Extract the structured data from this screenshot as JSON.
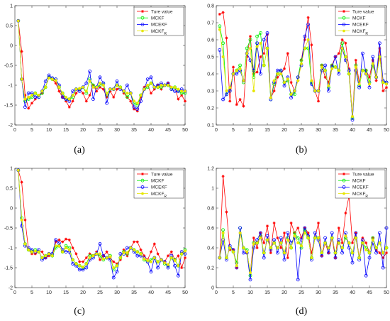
{
  "chart_data": [
    {
      "type": "line",
      "caption": "(a)",
      "ylim": [
        -2,
        1
      ],
      "xlim": [
        0,
        50
      ],
      "yticks": [
        "1",
        "0.5",
        "0",
        "-0.5",
        "-1",
        "-1.5",
        "-2"
      ],
      "xticks": [
        "0",
        "5",
        "10",
        "15",
        "20",
        "25",
        "30",
        "35",
        "40",
        "45",
        "50"
      ],
      "legend": [
        "Ture value",
        "MCKF",
        "MCEKF",
        "MCKF_R"
      ],
      "series": [
        {
          "name": "Ture value",
          "color": "#ff0000",
          "marker": "star",
          "values": [
            0.62,
            -0.15,
            -1.25,
            -1.58,
            -1.45,
            -1.35,
            -1.25,
            -1.2,
            -1.05,
            -0.8,
            -0.85,
            -0.95,
            -1.15,
            -1.3,
            -1.4,
            -1.55,
            -1.4,
            -1.2,
            -1.1,
            -1.2,
            -1.4,
            -1.25,
            -1.0,
            -1.15,
            -1.05,
            -1.1,
            -1.3,
            -1.15,
            -1.3,
            -1.1,
            -1.05,
            -1.2,
            -1.3,
            -1.4,
            -1.6,
            -1.65,
            -1.3,
            -1.05,
            -1.0,
            -1.2,
            -1.1,
            -1.0,
            -1.1,
            -1.0,
            -0.95,
            -1.05,
            -1.05,
            -1.35,
            -1.25,
            -1.4
          ]
        },
        {
          "name": "MCKF",
          "color": "#00ee00",
          "marker": "circle",
          "values": [
            0.62,
            -0.85,
            -1.4,
            -1.35,
            -1.3,
            -1.2,
            -1.3,
            -1.2,
            -1.05,
            -0.8,
            -0.85,
            -0.85,
            -1.05,
            -1.2,
            -1.35,
            -1.35,
            -1.3,
            -1.1,
            -1.1,
            -1.05,
            -1.2,
            -0.85,
            -1.0,
            -1.05,
            -1.0,
            -0.95,
            -1.25,
            -1.1,
            -1.1,
            -1.0,
            -1.05,
            -1.15,
            -1.3,
            -1.2,
            -1.45,
            -1.5,
            -1.25,
            -1.1,
            -1.05,
            -0.95,
            -1.05,
            -1.05,
            -1.05,
            -1.0,
            -1.0,
            -1.1,
            -1.05,
            -1.15,
            -1.2,
            -1.2
          ]
        },
        {
          "name": "MCEKF",
          "color": "#0000ff",
          "marker": "circle",
          "values": [
            0.62,
            -0.85,
            -1.55,
            -1.2,
            -1.2,
            -1.3,
            -1.3,
            -1.15,
            -0.9,
            -0.75,
            -0.82,
            -0.85,
            -1.0,
            -1.3,
            -1.35,
            -1.4,
            -1.15,
            -1.1,
            -1.15,
            -1.05,
            -0.95,
            -0.65,
            -1.35,
            -1.05,
            -0.8,
            -0.95,
            -1.45,
            -1.1,
            -1.1,
            -0.9,
            -1.1,
            -1.15,
            -1.0,
            -1.2,
            -1.55,
            -1.6,
            -1.4,
            -1.1,
            -0.85,
            -0.8,
            -1.05,
            -1.0,
            -0.95,
            -1.0,
            -0.95,
            -1.1,
            -1.15,
            -1.15,
            -1.1,
            -1.15
          ]
        },
        {
          "name": "MCKF_R",
          "color": "#e6e600",
          "marker": "dot",
          "values": [
            0.62,
            -0.85,
            -1.35,
            -1.3,
            -1.25,
            -1.2,
            -1.25,
            -1.15,
            -1.05,
            -0.82,
            -0.85,
            -0.88,
            -1.05,
            -1.2,
            -1.3,
            -1.35,
            -1.25,
            -1.1,
            -1.08,
            -1.05,
            -1.15,
            -0.9,
            -1.05,
            -1.05,
            -0.95,
            -1.0,
            -1.2,
            -1.1,
            -1.1,
            -1.0,
            -1.05,
            -1.15,
            -1.2,
            -1.2,
            -1.4,
            -1.45,
            -1.25,
            -1.1,
            -1.0,
            -0.95,
            -1.05,
            -1.05,
            -1.0,
            -1.0,
            -1.0,
            -1.05,
            -1.05,
            -1.1,
            -1.15,
            -1.15
          ]
        }
      ]
    },
    {
      "type": "line",
      "caption": "(b)",
      "ylim": [
        0.1,
        0.8
      ],
      "xlim": [
        0,
        50
      ],
      "yticks": [
        "0.8",
        "0.7",
        "0.6",
        "0.5",
        "0.4",
        "0.3",
        "0.2",
        "0.1"
      ],
      "xticks": [
        "0",
        "5",
        "10",
        "15",
        "20",
        "25",
        "30",
        "35",
        "40",
        "45",
        "50"
      ],
      "legend": [
        "Ture value",
        "MCKF",
        "MCEKF",
        "MCKF_R"
      ],
      "series": [
        {
          "name": "Ture value",
          "color": "#ff0000",
          "marker": "star",
          "values": [
            0.75,
            0.76,
            0.61,
            0.24,
            0.44,
            0.22,
            0.25,
            0.21,
            0.5,
            0.62,
            0.4,
            0.41,
            0.5,
            0.52,
            0.63,
            0.26,
            0.3,
            0.38,
            0.4,
            0.43,
            0.52,
            0.35,
            0.3,
            0.36,
            0.48,
            0.6,
            0.73,
            0.57,
            0.3,
            0.24,
            0.45,
            0.38,
            0.35,
            0.45,
            0.5,
            0.52,
            0.6,
            0.58,
            0.43,
            0.15,
            0.48,
            0.35,
            0.42,
            0.42,
            0.38,
            0.48,
            0.36,
            0.55,
            0.3,
            0.32
          ]
        },
        {
          "name": "MCKF",
          "color": "#00ee00",
          "marker": "circle",
          "values": [
            0.68,
            0.58,
            0.28,
            0.3,
            0.4,
            0.42,
            0.45,
            0.35,
            0.55,
            0.6,
            0.38,
            0.62,
            0.64,
            0.45,
            0.55,
            0.25,
            0.34,
            0.4,
            0.42,
            0.35,
            0.36,
            0.28,
            0.28,
            0.38,
            0.48,
            0.55,
            0.55,
            0.35,
            0.3,
            0.3,
            0.45,
            0.42,
            0.32,
            0.45,
            0.44,
            0.42,
            0.58,
            0.5,
            0.4,
            0.14,
            0.45,
            0.33,
            0.42,
            0.42,
            0.35,
            0.45,
            0.38,
            0.5,
            0.35,
            0.35
          ]
        },
        {
          "name": "MCEKF",
          "color": "#0000ff",
          "marker": "circle",
          "values": [
            0.54,
            0.25,
            0.28,
            0.3,
            0.4,
            0.4,
            0.42,
            0.36,
            0.52,
            0.48,
            0.42,
            0.58,
            0.4,
            0.6,
            0.64,
            0.25,
            0.35,
            0.42,
            0.42,
            0.33,
            0.38,
            0.26,
            0.3,
            0.38,
            0.45,
            0.62,
            0.69,
            0.34,
            0.3,
            0.3,
            0.42,
            0.45,
            0.3,
            0.44,
            0.5,
            0.4,
            0.55,
            0.48,
            0.42,
            0.13,
            0.42,
            0.32,
            0.52,
            0.4,
            0.32,
            0.5,
            0.38,
            0.58,
            0.36,
            0.35
          ]
        },
        {
          "name": "MCKF_R",
          "color": "#e6e600",
          "marker": "dot",
          "values": [
            0.66,
            0.5,
            0.3,
            0.32,
            0.4,
            0.42,
            0.43,
            0.36,
            0.52,
            0.55,
            0.3,
            0.56,
            0.58,
            0.45,
            0.55,
            0.26,
            0.36,
            0.4,
            0.4,
            0.35,
            0.37,
            0.28,
            0.3,
            0.36,
            0.46,
            0.55,
            0.6,
            0.36,
            0.3,
            0.3,
            0.44,
            0.42,
            0.33,
            0.43,
            0.44,
            0.42,
            0.55,
            0.5,
            0.4,
            0.15,
            0.44,
            0.34,
            0.42,
            0.4,
            0.34,
            0.46,
            0.38,
            0.5,
            0.35,
            0.34
          ]
        }
      ]
    },
    {
      "type": "line",
      "caption": "(c)",
      "ylim": [
        -2,
        1
      ],
      "xlim": [
        0,
        50
      ],
      "yticks": [
        "1",
        "0.5",
        "0",
        "-0.5",
        "-1",
        "-1.5",
        "-2"
      ],
      "xticks": [
        "0",
        "5",
        "10",
        "15",
        "20",
        "25",
        "30",
        "35",
        "40",
        "45",
        "50"
      ],
      "legend": [
        "Ture value",
        "MCKF",
        "MCEKF",
        "MCKF_R"
      ],
      "series": [
        {
          "name": "Ture value",
          "color": "#ff0000",
          "marker": "star",
          "values": [
            0.95,
            0.65,
            -0.3,
            -1.05,
            -1.15,
            -1.15,
            -1.1,
            -1.1,
            -1.25,
            -1.2,
            -1.2,
            -0.85,
            -0.8,
            -0.85,
            -0.78,
            -0.8,
            -1.0,
            -1.15,
            -1.35,
            -1.35,
            -1.25,
            -1.15,
            -1.2,
            -1.1,
            -1.3,
            -1.2,
            -1.1,
            -1.25,
            -1.35,
            -1.4,
            -1.3,
            -1.05,
            -1.2,
            -1.0,
            -0.85,
            -0.85,
            -1.05,
            -1.2,
            -1.3,
            -1.1,
            -0.9,
            -1.15,
            -1.3,
            -1.35,
            -1.2,
            -1.1,
            -1.3,
            -1.2,
            -1.5,
            -1.25
          ]
        },
        {
          "name": "MCKF",
          "color": "#00ee00",
          "marker": "circle",
          "values": [
            0.95,
            -0.25,
            -0.9,
            -1.05,
            -1.1,
            -1.05,
            -1.1,
            -1.25,
            -1.2,
            -1.15,
            -1.2,
            -1.0,
            -0.95,
            -1.1,
            -0.95,
            -1.0,
            -1.3,
            -1.4,
            -1.45,
            -1.5,
            -1.4,
            -1.2,
            -1.2,
            -1.15,
            -1.2,
            -1.3,
            -1.25,
            -1.2,
            -1.55,
            -1.45,
            -1.25,
            -1.1,
            -1.15,
            -1.0,
            -1.05,
            -1.1,
            -1.15,
            -1.3,
            -1.35,
            -1.3,
            -1.25,
            -1.35,
            -1.3,
            -1.4,
            -1.45,
            -1.25,
            -1.3,
            -1.45,
            -1.15,
            -1.05
          ]
        },
        {
          "name": "MCEKF",
          "color": "#0000ff",
          "marker": "circle",
          "values": [
            0.95,
            -0.45,
            -0.95,
            -1.0,
            -1.05,
            -1.1,
            -1.05,
            -1.3,
            -1.25,
            -1.15,
            -1.15,
            -0.8,
            -0.88,
            -1.05,
            -1.1,
            -1.1,
            -1.4,
            -1.45,
            -1.55,
            -1.55,
            -1.5,
            -1.3,
            -1.25,
            -1.15,
            -0.9,
            -1.2,
            -1.25,
            -1.3,
            -1.75,
            -1.6,
            -1.15,
            -1.15,
            -1.0,
            -1.0,
            -1.1,
            -1.2,
            -1.2,
            -1.25,
            -1.35,
            -1.6,
            -1.25,
            -1.5,
            -1.3,
            -1.35,
            -1.5,
            -1.2,
            -1.45,
            -1.7,
            -1.1,
            -1.15
          ]
        },
        {
          "name": "MCKF_R",
          "color": "#e6e600",
          "marker": "dot",
          "values": [
            0.95,
            -0.3,
            -0.9,
            -1.05,
            -1.1,
            -1.08,
            -1.1,
            -1.25,
            -1.2,
            -1.15,
            -1.2,
            -0.95,
            -0.95,
            -1.1,
            -1.0,
            -1.05,
            -1.3,
            -1.4,
            -1.45,
            -1.48,
            -1.4,
            -1.25,
            -1.2,
            -1.15,
            -1.15,
            -1.28,
            -1.25,
            -1.22,
            -1.5,
            -1.45,
            -1.25,
            -1.12,
            -1.12,
            -1.0,
            -1.05,
            -1.1,
            -1.15,
            -1.28,
            -1.32,
            -1.35,
            -1.25,
            -1.35,
            -1.3,
            -1.38,
            -1.42,
            -1.25,
            -1.32,
            -1.45,
            -1.15,
            -1.08
          ]
        }
      ]
    },
    {
      "type": "line",
      "caption": "(d)",
      "ylim": [
        0,
        1.2
      ],
      "xlim": [
        0,
        50
      ],
      "yticks": [
        "1.2",
        "1",
        "0.8",
        "0.6",
        "0.4",
        "0.2",
        "0"
      ],
      "xticks": [
        "0",
        "5",
        "10",
        "15",
        "20",
        "25",
        "30",
        "35",
        "40",
        "45",
        "50"
      ],
      "legend": [
        "Ture value",
        "MCKF",
        "MCEKF",
        "MCKF_R"
      ],
      "series": [
        {
          "name": "Ture value",
          "color": "#ff0000",
          "marker": "star",
          "values": [
            0.3,
            1.12,
            0.76,
            0.38,
            0.38,
            0.2,
            0.55,
            0.4,
            0.35,
            0.15,
            0.5,
            0.4,
            0.55,
            0.45,
            0.62,
            0.35,
            0.65,
            0.5,
            0.4,
            0.55,
            0.3,
            0.65,
            0.55,
            0.6,
            0.5,
            0.6,
            0.55,
            0.35,
            0.5,
            0.65,
            0.32,
            0.45,
            0.35,
            0.5,
            0.3,
            0.6,
            0.45,
            0.75,
            0.92,
            0.45,
            0.55,
            0.3,
            0.5,
            0.45,
            0.35,
            0.5,
            0.38,
            0.35,
            0.3,
            0.35
          ]
        },
        {
          "name": "MCKF",
          "color": "#00ee00",
          "marker": "circle",
          "values": [
            0.3,
            0.58,
            0.3,
            0.4,
            0.36,
            0.25,
            0.6,
            0.4,
            0.38,
            0.12,
            0.45,
            0.45,
            0.52,
            0.35,
            0.48,
            0.4,
            0.45,
            0.4,
            0.45,
            0.35,
            0.5,
            0.4,
            0.55,
            0.5,
            0.4,
            0.58,
            0.5,
            0.3,
            0.5,
            0.5,
            0.35,
            0.45,
            0.4,
            0.5,
            0.35,
            0.45,
            0.4,
            0.5,
            0.45,
            0.35,
            0.5,
            0.3,
            0.45,
            0.4,
            0.35,
            0.5,
            0.4,
            0.45,
            0.35,
            0.4
          ]
        },
        {
          "name": "MCEKF",
          "color": "#0000ff",
          "marker": "circle",
          "values": [
            0.3,
            0.48,
            0.28,
            0.42,
            0.38,
            0.2,
            0.6,
            0.35,
            0.35,
            0.08,
            0.4,
            0.48,
            0.55,
            0.3,
            0.52,
            0.38,
            0.48,
            0.35,
            0.5,
            0.28,
            0.55,
            0.45,
            0.5,
            0.08,
            0.48,
            0.6,
            0.52,
            0.28,
            0.55,
            0.48,
            0.32,
            0.5,
            0.35,
            0.55,
            0.3,
            0.48,
            0.35,
            0.55,
            0.4,
            0.25,
            0.55,
            0.28,
            0.48,
            0.12,
            0.3,
            0.45,
            0.35,
            0.55,
            0.2,
            0.6
          ]
        },
        {
          "name": "MCKF_R",
          "color": "#e6e600",
          "marker": "dot",
          "values": [
            0.3,
            0.55,
            0.3,
            0.4,
            0.36,
            0.22,
            0.55,
            0.4,
            0.36,
            0.15,
            0.44,
            0.45,
            0.5,
            0.35,
            0.48,
            0.4,
            0.45,
            0.4,
            0.45,
            0.35,
            0.48,
            0.4,
            0.52,
            0.45,
            0.42,
            0.55,
            0.5,
            0.3,
            0.5,
            0.5,
            0.35,
            0.45,
            0.4,
            0.5,
            0.35,
            0.45,
            0.4,
            0.52,
            0.45,
            0.35,
            0.5,
            0.3,
            0.45,
            0.38,
            0.35,
            0.48,
            0.4,
            0.45,
            0.35,
            0.4
          ]
        }
      ]
    }
  ]
}
